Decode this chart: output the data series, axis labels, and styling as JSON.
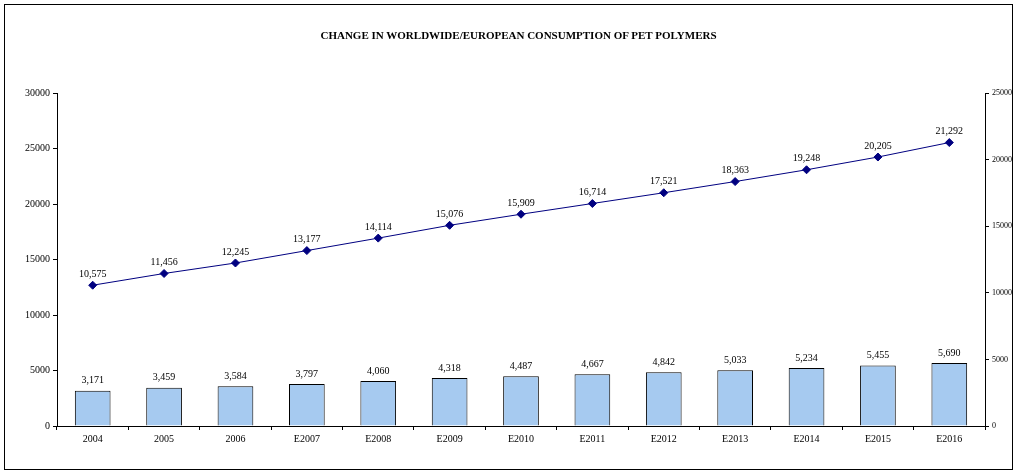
{
  "chart_data": {
    "type": "bar",
    "title": "CHANGE IN WORLDWIDE/EUROPEAN CONSUMPTION OF PET POLYMERS",
    "categories": [
      "2004",
      "2005",
      "2006",
      "E2007",
      "E2008",
      "E2009",
      "E2010",
      "E2011",
      "E2012",
      "E2013",
      "E2014",
      "E2015",
      "E2016"
    ],
    "series": [
      {
        "color": "#a6caf0",
        "values": [
          3171,
          3459,
          3584,
          3797,
          4060,
          4318,
          4487,
          4667,
          4842,
          5033,
          5234,
          5455,
          5690
        ],
        "value_labels": [
          "3,171",
          "3,459",
          "3,584",
          "3,797",
          "4,060",
          "4,318",
          "4,487",
          "4,667",
          "4,842",
          "5,033",
          "5,234",
          "5,455",
          "5,690"
        ]
      },
      {
        "type": "line",
        "axis": "y2",
        "color": "#000080",
        "values": [
          10575,
          11456,
          12245,
          13177,
          14114,
          15076,
          15909,
          16714,
          17521,
          18363,
          19248,
          20205,
          21292
        ],
        "value_labels": [
          "10,575",
          "11,456",
          "12,245",
          "13,177",
          "14,114",
          "15,076",
          "15,909",
          "16,714",
          "17,521",
          "18,363",
          "19,248",
          "20,205",
          "21,292"
        ]
      }
    ],
    "ylim": [
      0,
      30000
    ],
    "yticks": [
      0,
      5000,
      10000,
      15000,
      20000,
      25000,
      30000
    ],
    "y2lim": [
      0,
      25000
    ],
    "y2ticks": [
      0,
      5000,
      10000,
      15000,
      20000,
      25000
    ],
    "marker": "diamond",
    "line_style": "solid",
    "grid": false,
    "legend": false
  }
}
